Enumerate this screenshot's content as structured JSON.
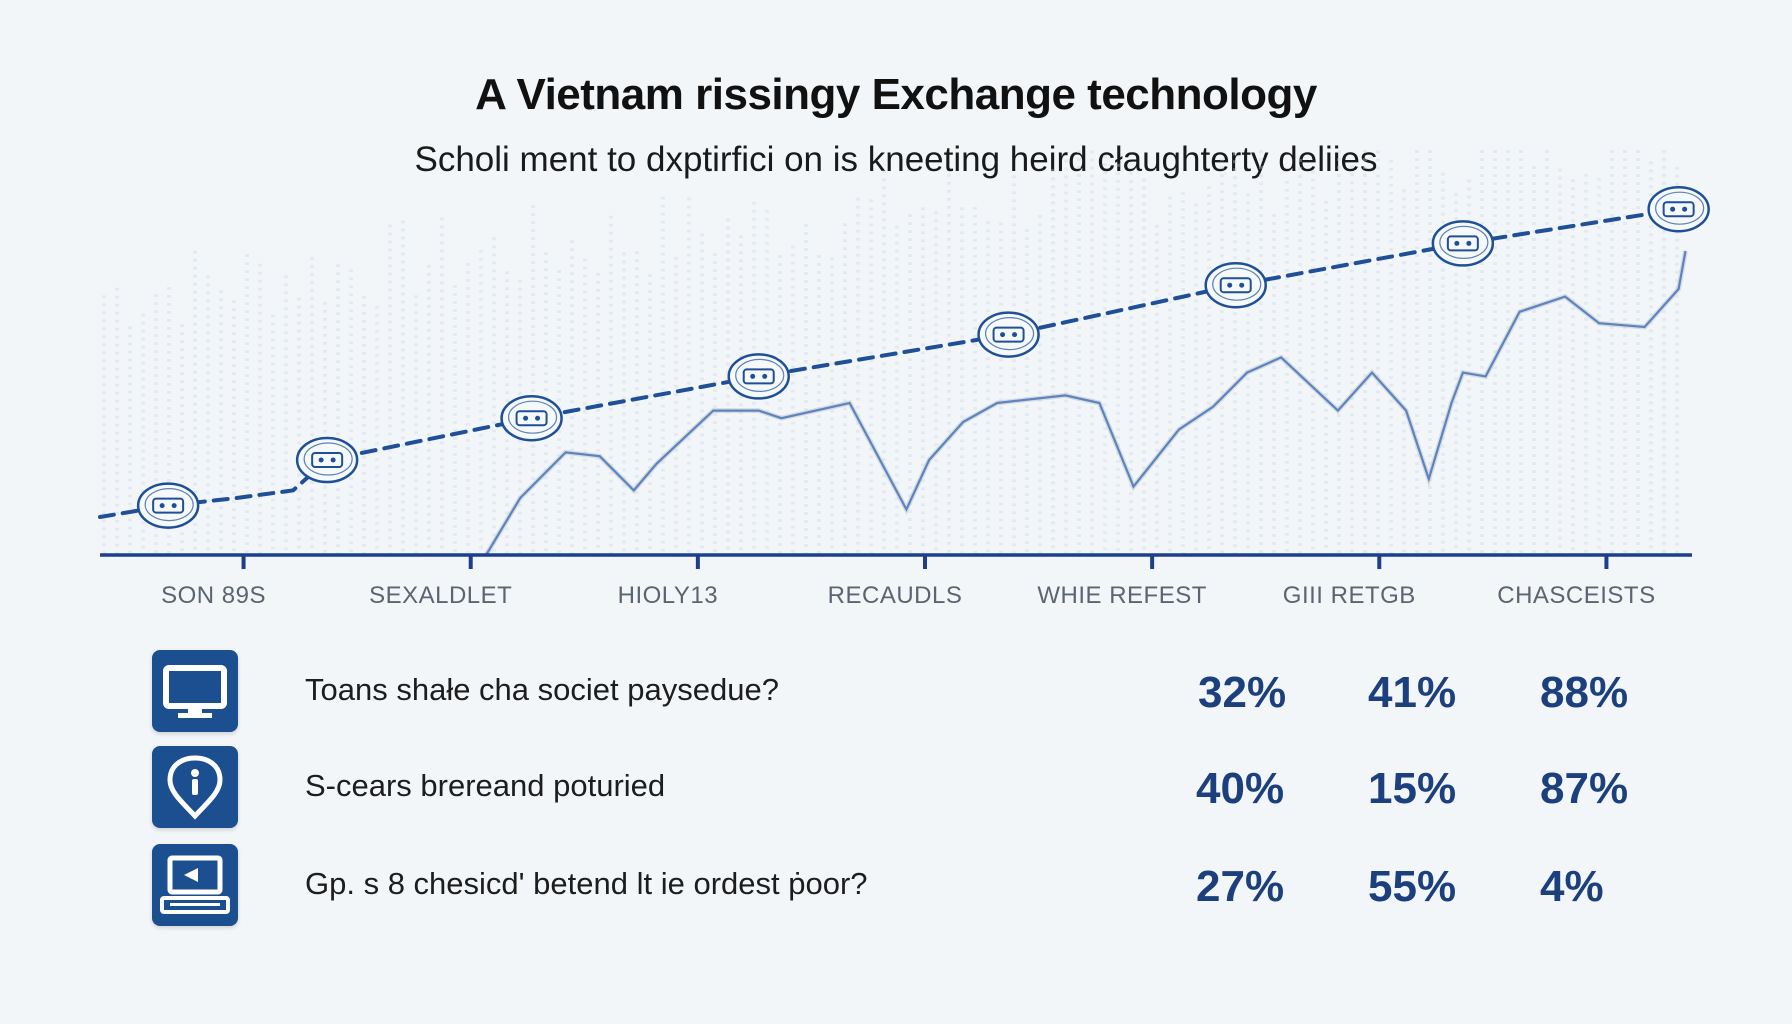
{
  "title": "A Vietnam rissingy Exchange technology",
  "subtitle": "Scholi ment to dxptirfici on is kneeting heird cłaughterty deliies",
  "colors": {
    "accent": "#1c4f8f",
    "trend": "#1f4f96",
    "series": "#5d84bc",
    "axis": "#1c3f8c",
    "grid": "#c9d6e4"
  },
  "chart_data": {
    "type": "line",
    "x_ticks": [
      "SON 89S",
      "SEXALDLET",
      "HIOLY13",
      "RECAUDLS",
      "WHIE REFEST",
      "GIII RETGB",
      "CHASCEISTS"
    ],
    "xlim": [
      0,
      7
    ],
    "ylim": [
      0,
      100
    ],
    "grid": true,
    "series": [
      {
        "style": "dashed",
        "with_markers": true,
        "x": [
          0,
          0.3,
          0.6,
          0.85,
          1.0,
          1.9,
          2.9,
          4.0,
          5.0,
          6.0,
          6.95
        ],
        "y": [
          10,
          13,
          15,
          17,
          25,
          36,
          47,
          58,
          71,
          82,
          91
        ]
      },
      {
        "style": "solid",
        "with_markers": false,
        "x": [
          1.7,
          1.85,
          2.05,
          2.2,
          2.35,
          2.45,
          2.7,
          2.9,
          3.0,
          3.3,
          3.55,
          3.65,
          3.8,
          3.95,
          4.25,
          4.4,
          4.55,
          4.75,
          4.9,
          5.05,
          5.2,
          5.45,
          5.6,
          5.75,
          5.85,
          5.95,
          6.0,
          6.1,
          6.25,
          6.45,
          6.6,
          6.8,
          6.95,
          6.98
        ],
        "y": [
          0,
          15,
          27,
          26,
          17,
          24,
          38,
          38,
          36,
          40,
          12,
          25,
          35,
          40,
          42,
          40,
          18,
          33,
          39,
          48,
          52,
          38,
          48,
          38,
          20,
          40,
          48,
          47,
          64,
          68,
          61,
          60,
          70,
          80
        ]
      }
    ]
  },
  "stats": [
    {
      "icon": "monitor-icon",
      "question": "Toans shałe cha societ paysedue?",
      "values": [
        "32%",
        "41%",
        "88%"
      ]
    },
    {
      "icon": "location-pin-icon",
      "question": "S-cears brereand poturied",
      "values": [
        "40%",
        "15%",
        "87%"
      ]
    },
    {
      "icon": "laptop-icon",
      "question": "Gp. s 8 chesicd' betend lt ie ordest ṗoor?",
      "values": [
        "27%",
        "55%",
        "4%"
      ]
    }
  ]
}
